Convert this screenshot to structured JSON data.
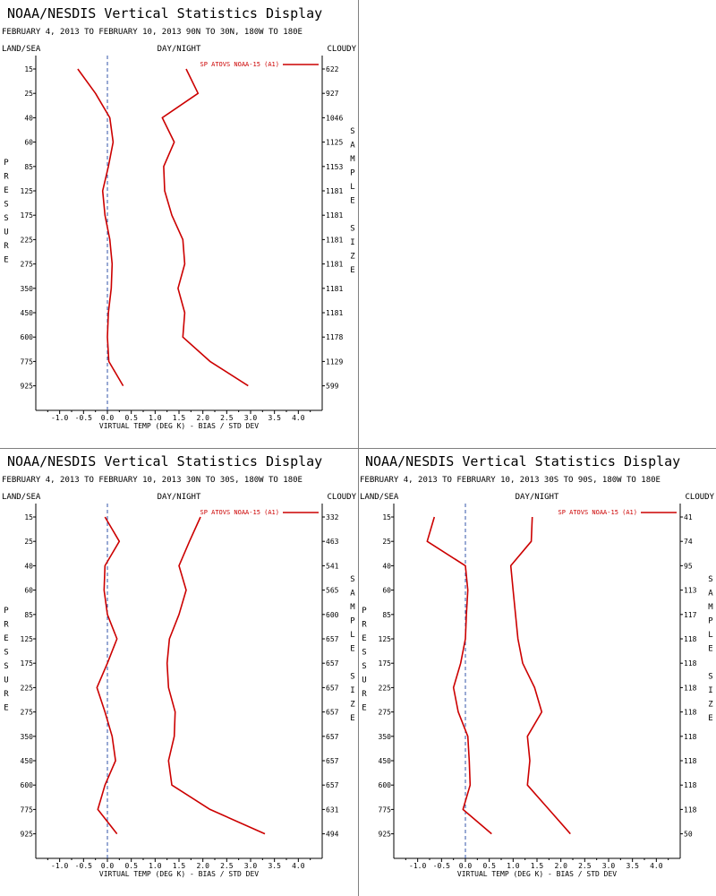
{
  "chart_data": [
    {
      "type": "line",
      "title": "NOAA/NESDIS Vertical Statistics Display",
      "subtitle": "FEBRUARY 4, 2013 TO FEBRUARY 10, 2013 90N TO 30N, 180W TO 180E",
      "corner_left": "LAND/SEA",
      "corner_center": "DAY/NIGHT",
      "corner_right": "CLOUDY",
      "ylabel": "PRESSURE",
      "y2label": "SAMPLE SIZE",
      "xlabel": "VIRTUAL TEMP (DEG K) - BIAS / STD DEV",
      "xlim": [
        -1.5,
        4.5
      ],
      "xticks": [
        "-1.0",
        "-0.5",
        "0.0",
        "0.5",
        "1.0",
        "1.5",
        "2.0",
        "2.5",
        "3.0",
        "3.5",
        "4.0"
      ],
      "pressure_levels": [
        "15",
        "25",
        "40",
        "60",
        "85",
        "125",
        "175",
        "225",
        "275",
        "350",
        "450",
        "600",
        "775",
        "925"
      ],
      "sample_size": [
        "622",
        "927",
        "1046",
        "1125",
        "1153",
        "1181",
        "1181",
        "1181",
        "1181",
        "1181",
        "1181",
        "1178",
        "1129",
        "599"
      ],
      "legend": "SP ATOVS NOAA-15 (A1)",
      "series": [
        {
          "name": "bias",
          "values": [
            -0.62,
            -0.25,
            0.05,
            0.12,
            0.02,
            -0.1,
            -0.05,
            0.05,
            0.1,
            0.08,
            0.02,
            0.0,
            0.03,
            0.33
          ]
        },
        {
          "name": "std_dev",
          "values": [
            1.65,
            1.9,
            1.15,
            1.4,
            1.18,
            1.2,
            1.35,
            1.58,
            1.62,
            1.48,
            1.62,
            1.58,
            2.15,
            2.95
          ]
        }
      ]
    },
    {
      "type": "line",
      "title": "NOAA/NESDIS Vertical Statistics Display",
      "subtitle": "FEBRUARY 4, 2013 TO FEBRUARY 10, 2013 30N TO 30S, 180W TO 180E",
      "corner_left": "LAND/SEA",
      "corner_center": "DAY/NIGHT",
      "corner_right": "CLOUDY",
      "ylabel": "PRESSURE",
      "y2label": "SAMPLE SIZE",
      "xlabel": "VIRTUAL TEMP (DEG K) - BIAS / STD DEV",
      "xlim": [
        -1.5,
        4.5
      ],
      "xticks": [
        "-1.0",
        "-0.5",
        "0.0",
        "0.5",
        "1.0",
        "1.5",
        "2.0",
        "2.5",
        "3.0",
        "3.5",
        "4.0"
      ],
      "pressure_levels": [
        "15",
        "25",
        "40",
        "60",
        "85",
        "125",
        "175",
        "225",
        "275",
        "350",
        "450",
        "600",
        "775",
        "925"
      ],
      "sample_size": [
        "332",
        "463",
        "541",
        "565",
        "600",
        "657",
        "657",
        "657",
        "657",
        "657",
        "657",
        "657",
        "631",
        "494"
      ],
      "legend": "SP ATOVS NOAA-15 (A1)",
      "series": [
        {
          "name": "bias",
          "values": [
            -0.05,
            0.25,
            -0.05,
            -0.07,
            0.0,
            0.2,
            0.0,
            -0.22,
            -0.05,
            0.1,
            0.17,
            -0.05,
            -0.2,
            0.2
          ]
        },
        {
          "name": "std_dev",
          "values": [
            1.95,
            1.72,
            1.5,
            1.65,
            1.5,
            1.3,
            1.25,
            1.28,
            1.42,
            1.4,
            1.28,
            1.35,
            2.15,
            3.3
          ]
        }
      ]
    },
    {
      "type": "line",
      "title": "NOAA/NESDIS Vertical Statistics Display",
      "subtitle": "FEBRUARY 4, 2013 TO FEBRUARY 10, 2013 30S TO 90S, 180W TO 180E",
      "corner_left": "LAND/SEA",
      "corner_center": "DAY/NIGHT",
      "corner_right": "CLOUDY",
      "ylabel": "PRESSURE",
      "y2label": "SAMPLE SIZE",
      "xlabel": "VIRTUAL TEMP (DEG K) - BIAS / STD DEV",
      "xlim": [
        -1.5,
        4.5
      ],
      "xticks": [
        "-1.0",
        "-0.5",
        "0.0",
        "0.5",
        "1.0",
        "1.5",
        "2.0",
        "2.5",
        "3.0",
        "3.5",
        "4.0"
      ],
      "pressure_levels": [
        "15",
        "25",
        "40",
        "60",
        "85",
        "125",
        "175",
        "225",
        "275",
        "350",
        "450",
        "600",
        "775",
        "925"
      ],
      "sample_size": [
        "41",
        "74",
        "95",
        "113",
        "117",
        "118",
        "118",
        "118",
        "118",
        "118",
        "118",
        "118",
        "118",
        "50"
      ],
      "legend": "SP ATOVS NOAA-15 (A1)",
      "series": [
        {
          "name": "bias",
          "values": [
            -0.65,
            -0.8,
            0.0,
            0.05,
            0.02,
            0.0,
            -0.1,
            -0.25,
            -0.15,
            0.05,
            0.08,
            0.1,
            -0.05,
            0.55
          ]
        },
        {
          "name": "std_dev",
          "values": [
            1.4,
            1.38,
            0.95,
            1.0,
            1.05,
            1.1,
            1.2,
            1.45,
            1.6,
            1.3,
            1.35,
            1.3,
            1.75,
            2.2
          ]
        }
      ]
    }
  ],
  "colors": {
    "line": "#cc0000",
    "zero_line": "#3355aa",
    "axis": "#000000",
    "divider": "#808080",
    "background": "#ffffff"
  }
}
